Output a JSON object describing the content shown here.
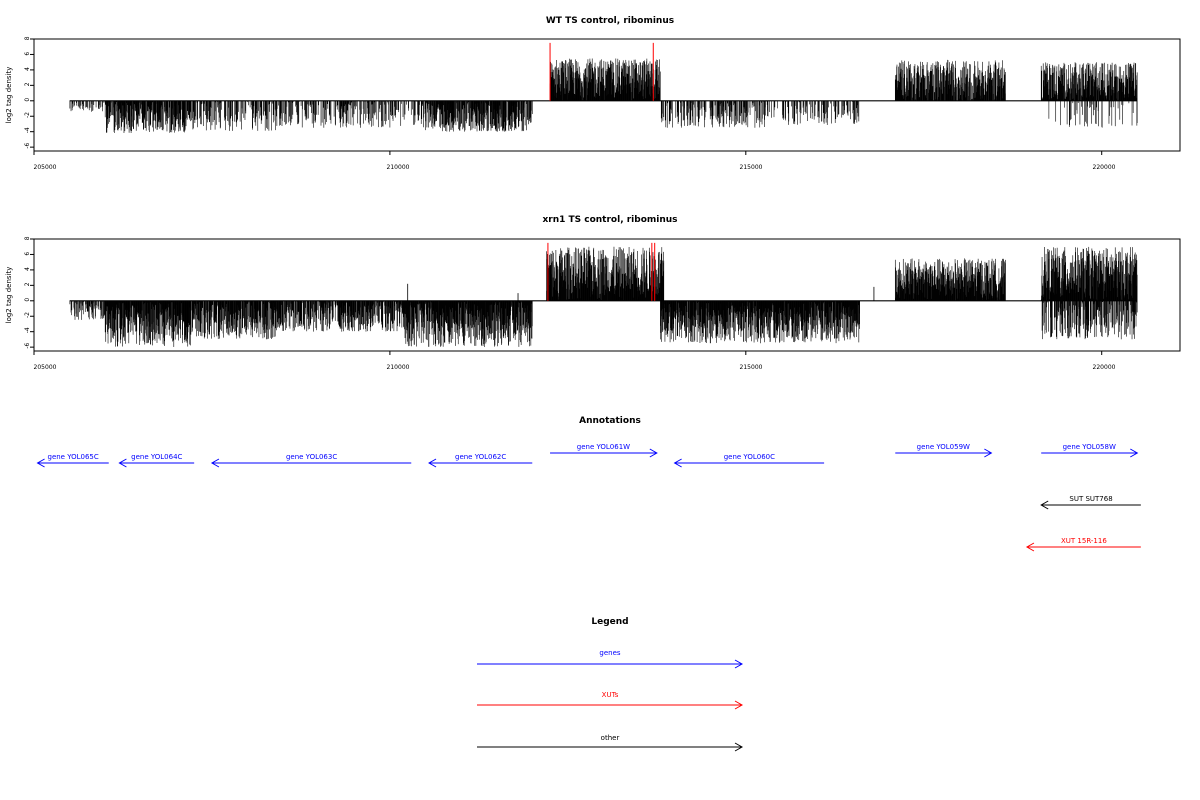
{
  "colors": {
    "gene": "#0000ff",
    "xut": "#ff0000",
    "other": "#000000",
    "data": "#000000",
    "marker": "#ff0000",
    "frame": "#000000"
  },
  "chart_data": [
    {
      "type": "bar",
      "title": "WT TS control, ribominus",
      "ylabel": "log2 tag density",
      "xlim": [
        205000,
        221100
      ],
      "ylim": [
        -6.5,
        8
      ],
      "xticks": [
        "205000",
        "210000",
        "215000",
        "220000"
      ],
      "yticks": [
        "-6",
        "-4",
        "-2",
        "0",
        "2",
        "4",
        "6",
        "8"
      ],
      "grid": false,
      "baseline_x": [
        205500,
        220500
      ],
      "regions": [
        {
          "x": [
            205500,
            206000
          ],
          "strand": "minus",
          "max": 1.5,
          "density": 0.35
        },
        {
          "x": [
            206000,
            207200
          ],
          "strand": "minus",
          "max": 4.2,
          "density": 0.85
        },
        {
          "x": [
            207200,
            208400
          ],
          "strand": "minus",
          "max": 4.0,
          "density": 0.45
        },
        {
          "x": [
            208400,
            210500
          ],
          "strand": "minus",
          "max": 3.5,
          "density": 0.4
        },
        {
          "x": [
            210500,
            212000
          ],
          "strand": "minus",
          "max": 4.0,
          "density": 0.85
        },
        {
          "x": [
            212250,
            213800
          ],
          "strand": "plus",
          "max": 5.5,
          "density": 1.0
        },
        {
          "x": [
            213800,
            215300
          ],
          "strand": "minus",
          "max": 3.5,
          "density": 0.45
        },
        {
          "x": [
            215300,
            216600
          ],
          "strand": "minus",
          "max": 3.2,
          "density": 0.3
        },
        {
          "x": [
            217100,
            218650
          ],
          "strand": "plus",
          "max": 5.3,
          "density": 0.9
        },
        {
          "x": [
            219150,
            220500
          ],
          "strand": "plus",
          "max": 5.0,
          "density": 0.95
        },
        {
          "x": [
            219150,
            220500
          ],
          "strand": "minus",
          "max": 3.5,
          "density": 0.15
        }
      ],
      "markers": [
        {
          "x": 212250,
          "y": 7.5
        },
        {
          "x": 213700,
          "y": 7.5
        }
      ]
    },
    {
      "type": "bar",
      "title": "xrn1 TS control, ribominus",
      "ylabel": "log2 tag density",
      "xlim": [
        205000,
        221100
      ],
      "ylim": [
        -6.5,
        8
      ],
      "xticks": [
        "205000",
        "210000",
        "215000",
        "220000"
      ],
      "yticks": [
        "-6",
        "-4",
        "-2",
        "0",
        "2",
        "4",
        "6",
        "8"
      ],
      "grid": false,
      "baseline_x": [
        205500,
        220500
      ],
      "regions": [
        {
          "x": [
            205500,
            206000
          ],
          "strand": "minus",
          "max": 2.5,
          "density": 0.5
        },
        {
          "x": [
            206000,
            207200
          ],
          "strand": "minus",
          "max": 6.0,
          "density": 1.0
        },
        {
          "x": [
            207200,
            208400
          ],
          "strand": "minus",
          "max": 5.0,
          "density": 0.9
        },
        {
          "x": [
            208400,
            210200
          ],
          "strand": "minus",
          "max": 4.0,
          "density": 0.8
        },
        {
          "x": [
            210200,
            212000
          ],
          "strand": "minus",
          "max": 6.0,
          "density": 1.0
        },
        {
          "x": [
            212200,
            213850
          ],
          "strand": "plus",
          "max": 7.0,
          "density": 1.0
        },
        {
          "x": [
            213800,
            216600
          ],
          "strand": "minus",
          "max": 5.5,
          "density": 1.0
        },
        {
          "x": [
            217100,
            218650
          ],
          "strand": "plus",
          "max": 5.5,
          "density": 1.0
        },
        {
          "x": [
            219150,
            220500
          ],
          "strand": "plus",
          "max": 7.0,
          "density": 1.0
        },
        {
          "x": [
            219150,
            220500
          ],
          "strand": "minus",
          "max": 5.0,
          "density": 0.6
        }
      ],
      "spikes": [
        {
          "x": 210250,
          "y": 2.2
        },
        {
          "x": 211800,
          "y": 1.0
        },
        {
          "x": 216800,
          "y": 1.8
        }
      ],
      "markers": [
        {
          "x": 212220,
          "y": 7.5
        },
        {
          "x": 213680,
          "y": 7.5
        },
        {
          "x": 213720,
          "y": 7.5
        }
      ]
    }
  ],
  "annotations": {
    "title": "Annotations",
    "features": [
      {
        "label": "gene YOL065C",
        "type": "gene",
        "dir": "left",
        "start": 205050,
        "end": 206050,
        "row": 0
      },
      {
        "label": "gene YOL064C",
        "type": "gene",
        "dir": "left",
        "start": 206200,
        "end": 207250,
        "row": 0
      },
      {
        "label": "gene YOL063C",
        "type": "gene",
        "dir": "left",
        "start": 207500,
        "end": 210300,
        "row": 0
      },
      {
        "label": "gene YOL062C",
        "type": "gene",
        "dir": "left",
        "start": 210550,
        "end": 212000,
        "row": 0
      },
      {
        "label": "gene YOL061W",
        "type": "gene",
        "dir": "right",
        "start": 212250,
        "end": 213750,
        "row": 1
      },
      {
        "label": "gene YOL060C",
        "type": "gene",
        "dir": "left",
        "start": 214000,
        "end": 216100,
        "row": 0
      },
      {
        "label": "gene YOL059W",
        "type": "gene",
        "dir": "right",
        "start": 217100,
        "end": 218450,
        "row": 1
      },
      {
        "label": "gene YOL058W",
        "type": "gene",
        "dir": "right",
        "start": 219150,
        "end": 220500,
        "row": 1
      },
      {
        "label": "SUT SUT768",
        "type": "other",
        "dir": "left",
        "start": 219150,
        "end": 220550,
        "row": 2
      },
      {
        "label": "XUT 15R-116",
        "type": "xut",
        "dir": "left",
        "start": 218950,
        "end": 220550,
        "row": 3
      }
    ]
  },
  "legend": {
    "title": "Legend",
    "items": [
      {
        "label": "genes",
        "type": "gene"
      },
      {
        "label": "XUTs",
        "type": "xut"
      },
      {
        "label": "other",
        "type": "other"
      }
    ]
  }
}
